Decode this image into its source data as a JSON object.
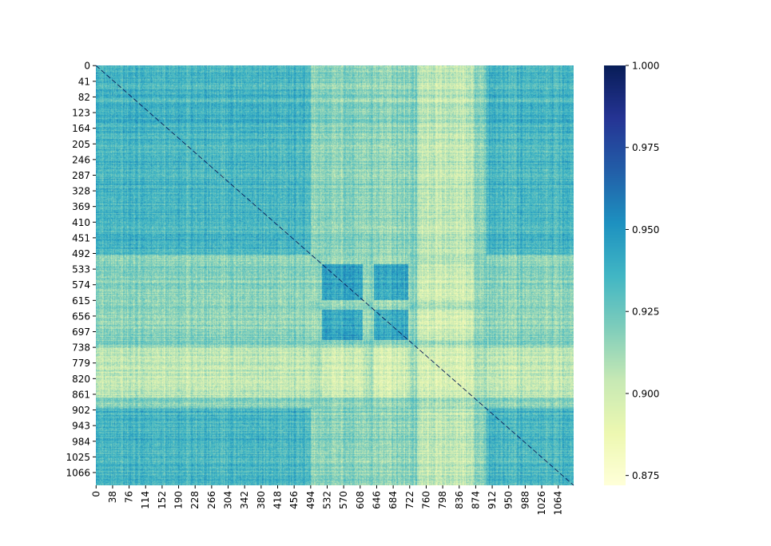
{
  "chart_data": {
    "type": "heatmap",
    "title": "",
    "xlabel": "",
    "ylabel": "",
    "n": 1100,
    "x_ticks": [
      0,
      38,
      76,
      114,
      152,
      190,
      228,
      266,
      304,
      342,
      380,
      418,
      456,
      494,
      532,
      570,
      608,
      646,
      684,
      722,
      760,
      798,
      836,
      874,
      912,
      950,
      988,
      1026,
      1064
    ],
    "y_ticks": [
      0,
      41,
      82,
      123,
      164,
      205,
      246,
      287,
      328,
      369,
      410,
      451,
      492,
      533,
      574,
      615,
      656,
      697,
      738,
      779,
      820,
      861,
      902,
      943,
      984,
      1025,
      1066
    ],
    "x_tick_labels": [
      "0",
      "38",
      "76",
      "114",
      "152",
      "190",
      "228",
      "266",
      "304",
      "342",
      "380",
      "418",
      "456",
      "494",
      "532",
      "570",
      "608",
      "646",
      "684",
      "722",
      "760",
      "798",
      "836",
      "874",
      "912",
      "950",
      "988",
      "1026",
      "1064"
    ],
    "y_tick_labels": [
      "0",
      "41",
      "82",
      "123",
      "164",
      "205",
      "246",
      "287",
      "328",
      "369",
      "410",
      "451",
      "492",
      "533",
      "574",
      "615",
      "656",
      "697",
      "738",
      "779",
      "820",
      "861",
      "902",
      "943",
      "984",
      "1025",
      "1066"
    ],
    "colorbar": {
      "colormap": "YlGnBu",
      "vmin": 0.872,
      "vmax": 1.0,
      "ticks": [
        0.875,
        0.9,
        0.925,
        0.95,
        0.975,
        1.0
      ],
      "tick_labels": [
        "0.875",
        "0.900",
        "0.925",
        "0.950",
        "0.975",
        "1.000"
      ]
    },
    "diagonal_value": 1.0,
    "block_structure": {
      "boundaries": [
        0,
        495,
        520,
        615,
        640,
        720,
        740,
        870,
        900,
        1100
      ],
      "cluster_of_segment": [
        0,
        3,
        1,
        3,
        1,
        3,
        2,
        3,
        0
      ],
      "cluster_mean_similarity": [
        [
          0.935,
          0.918,
          0.905,
          0.918
        ],
        [
          0.918,
          0.943,
          0.9,
          0.916
        ],
        [
          0.905,
          0.9,
          0.898,
          0.91
        ],
        [
          0.918,
          0.916,
          0.91,
          0.92
        ]
      ]
    },
    "colors": {
      "background": "#ffffff",
      "axis": "#000000"
    }
  }
}
